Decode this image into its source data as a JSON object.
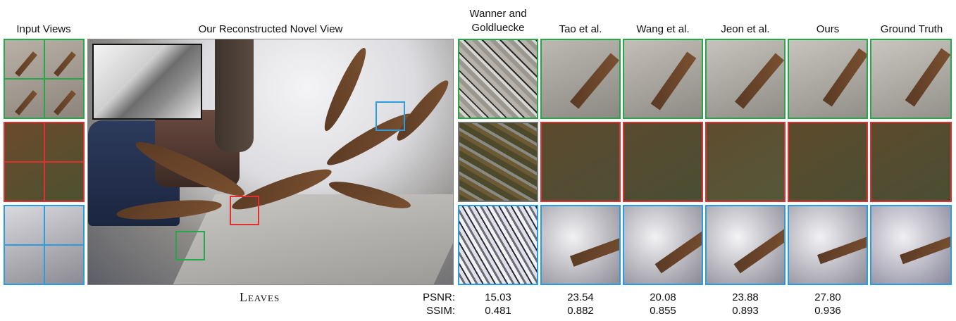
{
  "headers": {
    "input_views": "Input Views",
    "novel_view": "Our Reconstructed Novel View",
    "methods": [
      "Wanner and\nGoldluecke",
      "Tao et al.",
      "Wang et al.",
      "Jeon et al.",
      "Ours",
      "Ground Truth"
    ]
  },
  "scene_label": "Leaves",
  "metrics": {
    "psnr_label": "PSNR:",
    "ssim_label": "SSIM:",
    "psnr": [
      "15.03",
      "23.54",
      "20.08",
      "23.88",
      "27.80"
    ],
    "ssim": [
      "0.481",
      "0.882",
      "0.855",
      "0.893",
      "0.936"
    ]
  },
  "colors": {
    "green_box": "#26a84a",
    "red_box": "#e0302f",
    "blue_box": "#2a9de0"
  }
}
